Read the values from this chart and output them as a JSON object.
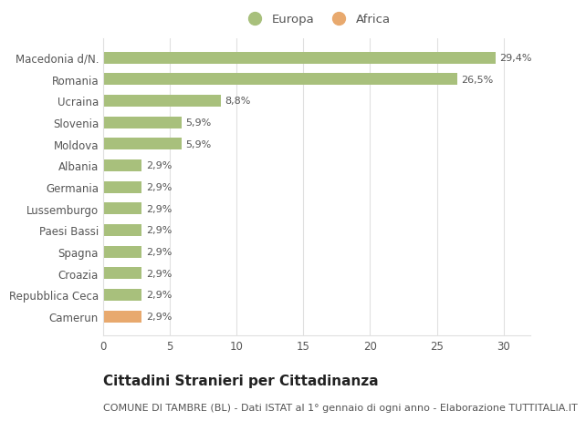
{
  "categories": [
    "Camerun",
    "Repubblica Ceca",
    "Croazia",
    "Spagna",
    "Paesi Bassi",
    "Lussemburgo",
    "Germania",
    "Albania",
    "Moldova",
    "Slovenia",
    "Ucraina",
    "Romania",
    "Macedonia d/N."
  ],
  "values": [
    2.9,
    2.9,
    2.9,
    2.9,
    2.9,
    2.9,
    2.9,
    2.9,
    5.9,
    5.9,
    8.8,
    26.5,
    29.4
  ],
  "labels": [
    "2,9%",
    "2,9%",
    "2,9%",
    "2,9%",
    "2,9%",
    "2,9%",
    "2,9%",
    "2,9%",
    "5,9%",
    "5,9%",
    "8,8%",
    "26,5%",
    "29,4%"
  ],
  "colors": [
    "#e8a96e",
    "#a8c07c",
    "#a8c07c",
    "#a8c07c",
    "#a8c07c",
    "#a8c07c",
    "#a8c07c",
    "#a8c07c",
    "#a8c07c",
    "#a8c07c",
    "#a8c07c",
    "#a8c07c",
    "#a8c07c"
  ],
  "europa_color": "#a8c07c",
  "africa_color": "#e8a96e",
  "background_color": "#ffffff",
  "title": "Cittadini Stranieri per Cittadinanza",
  "subtitle": "COMUNE DI TAMBRE (BL) - Dati ISTAT al 1° gennaio di ogni anno - Elaborazione TUTTITALIA.IT",
  "xlim": [
    0,
    32
  ],
  "xticks": [
    0,
    5,
    10,
    15,
    20,
    25,
    30
  ],
  "grid_color": "#e0e0e0",
  "bar_height": 0.55,
  "title_fontsize": 11,
  "subtitle_fontsize": 8,
  "label_fontsize": 8,
  "tick_fontsize": 8.5,
  "legend_fontsize": 9.5,
  "text_color": "#555555"
}
